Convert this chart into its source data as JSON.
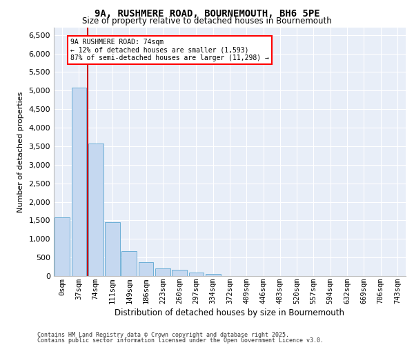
{
  "title_line1": "9A, RUSHMERE ROAD, BOURNEMOUTH, BH6 5PE",
  "title_line2": "Size of property relative to detached houses in Bournemouth",
  "xlabel": "Distribution of detached houses by size in Bournemouth",
  "ylabel": "Number of detached properties",
  "categories": [
    "0sqm",
    "37sqm",
    "74sqm",
    "111sqm",
    "149sqm",
    "186sqm",
    "223sqm",
    "260sqm",
    "297sqm",
    "334sqm",
    "372sqm",
    "409sqm",
    "446sqm",
    "483sqm",
    "520sqm",
    "557sqm",
    "594sqm",
    "632sqm",
    "669sqm",
    "706sqm",
    "743sqm"
  ],
  "values": [
    1590,
    5080,
    3580,
    1450,
    670,
    380,
    200,
    160,
    95,
    55,
    0,
    0,
    0,
    0,
    0,
    0,
    0,
    0,
    0,
    0,
    0
  ],
  "bar_color": "#c5d8f0",
  "bar_edge_color": "#6baed6",
  "vline_color": "#cc0000",
  "vline_x_index": 1,
  "annotation_text": "9A RUSHMERE ROAD: 74sqm\n← 12% of detached houses are smaller (1,593)\n87% of semi-detached houses are larger (11,298) →",
  "annotation_box_facecolor": "white",
  "annotation_box_edgecolor": "red",
  "ylim": [
    0,
    6700
  ],
  "yticks": [
    0,
    500,
    1000,
    1500,
    2000,
    2500,
    3000,
    3500,
    4000,
    4500,
    5000,
    5500,
    6000,
    6500
  ],
  "bg_color": "#e8eef8",
  "grid_color": "#ffffff",
  "footer1": "Contains HM Land Registry data © Crown copyright and database right 2025.",
  "footer2": "Contains public sector information licensed under the Open Government Licence v3.0."
}
